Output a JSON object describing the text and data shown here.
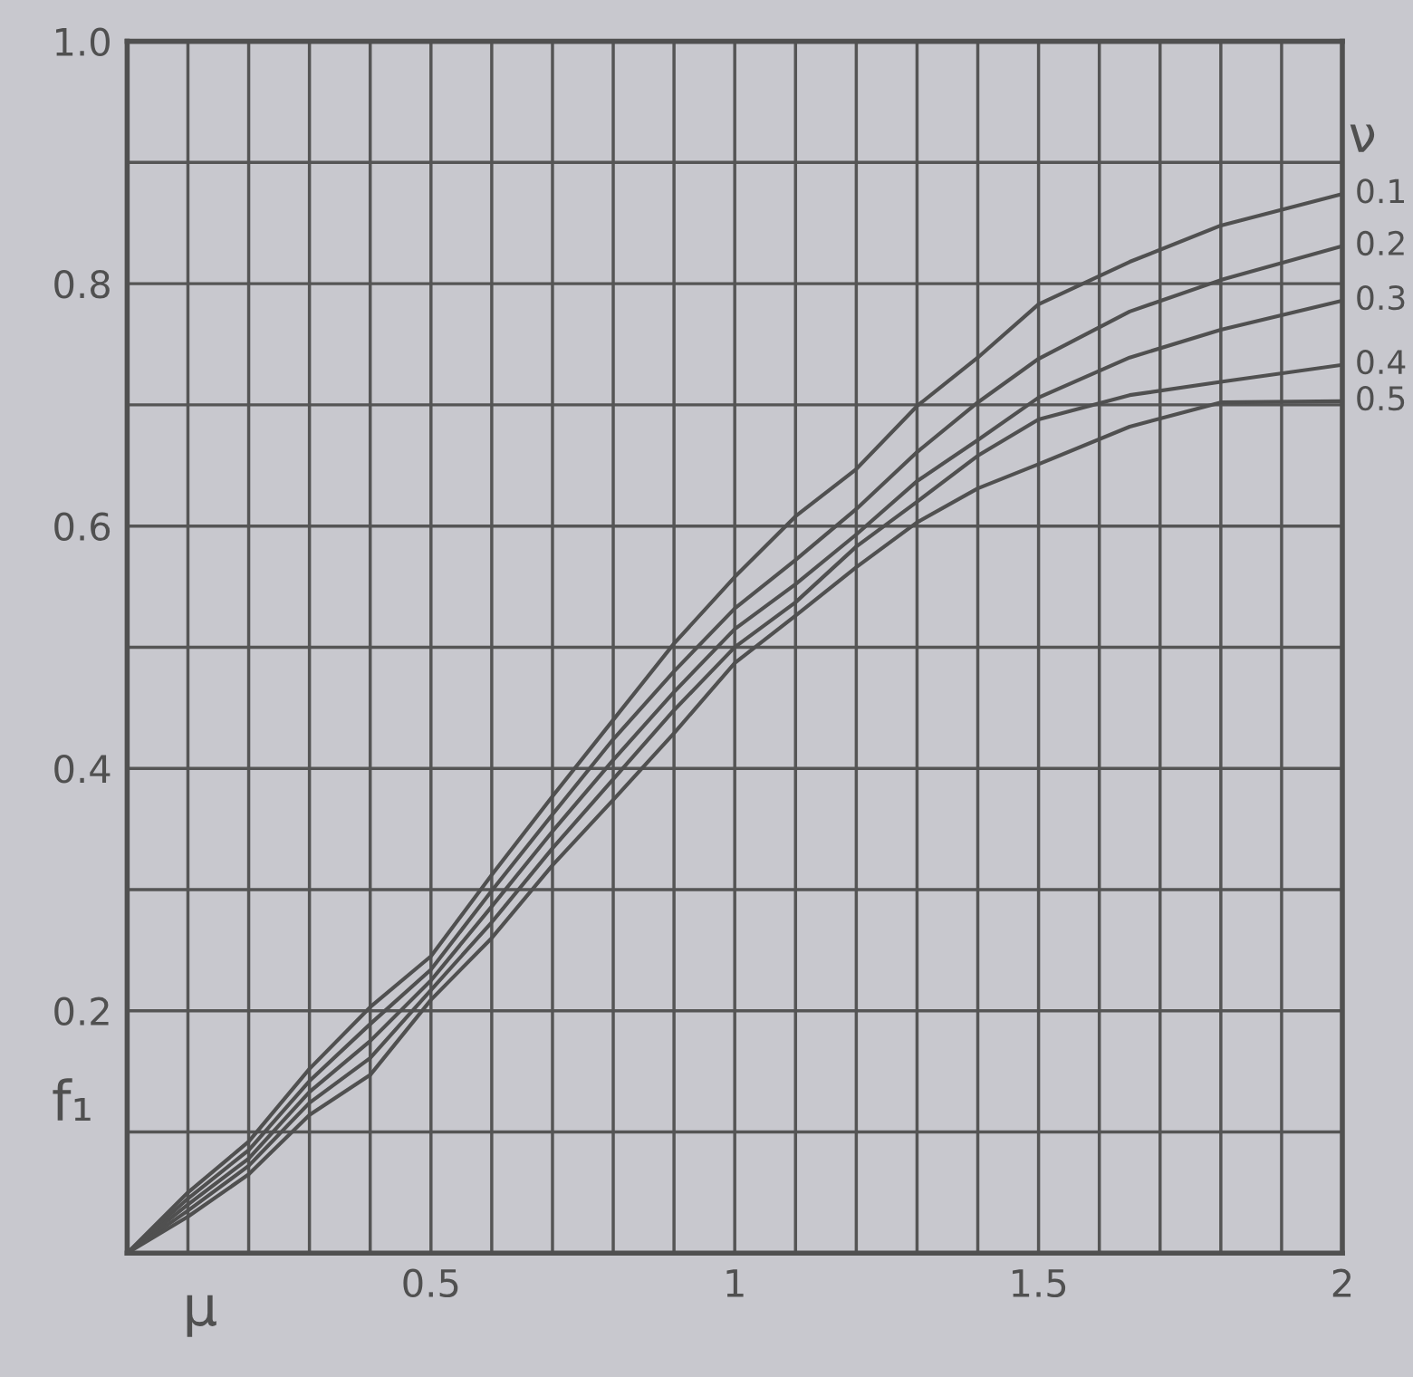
{
  "chart_data": {
    "type": "line",
    "xlabel": "μ",
    "ylabel": "f₁",
    "legend_title": "ν",
    "x": [
      0,
      0.1,
      0.2,
      0.3,
      0.4,
      0.5,
      0.6,
      0.7,
      0.8,
      0.9,
      1.0,
      1.1,
      1.2,
      1.3,
      1.4,
      1.5,
      1.65,
      1.8,
      2.0
    ],
    "series": [
      {
        "name": "0.1",
        "color": "#505050",
        "values": [
          0,
          0.05,
          0.092,
          0.152,
          0.203,
          0.245,
          0.312,
          0.377,
          0.44,
          0.503,
          0.558,
          0.608,
          0.647,
          0.699,
          0.739,
          0.783,
          0.818,
          0.848,
          0.874
        ]
      },
      {
        "name": "0.2",
        "color": "#505050",
        "values": [
          0,
          0.045,
          0.085,
          0.142,
          0.189,
          0.234,
          0.299,
          0.362,
          0.424,
          0.48,
          0.532,
          0.572,
          0.614,
          0.661,
          0.702,
          0.738,
          0.777,
          0.803,
          0.831
        ]
      },
      {
        "name": "0.3",
        "color": "#505050",
        "values": [
          0,
          0.04,
          0.078,
          0.133,
          0.175,
          0.225,
          0.286,
          0.348,
          0.407,
          0.463,
          0.515,
          0.552,
          0.593,
          0.637,
          0.671,
          0.706,
          0.739,
          0.762,
          0.786
        ]
      },
      {
        "name": "0.4",
        "color": "#505050",
        "values": [
          0,
          0.035,
          0.072,
          0.124,
          0.161,
          0.217,
          0.273,
          0.334,
          0.391,
          0.448,
          0.5,
          0.537,
          0.583,
          0.62,
          0.658,
          0.688,
          0.708,
          0.719,
          0.733
        ]
      },
      {
        "name": "0.5",
        "color": "#505050",
        "values": [
          0,
          0.03,
          0.065,
          0.114,
          0.147,
          0.209,
          0.26,
          0.32,
          0.374,
          0.429,
          0.487,
          0.526,
          0.566,
          0.603,
          0.631,
          0.651,
          0.682,
          0.702,
          0.703
        ]
      }
    ],
    "xlim": [
      0,
      2
    ],
    "ylim": [
      0,
      1.0
    ],
    "xticks": [
      {
        "value": 0.1,
        "label": null
      },
      {
        "value": 0.2,
        "label": null
      },
      {
        "value": 0.3,
        "label": null
      },
      {
        "value": 0.4,
        "label": null
      },
      0.5,
      {
        "value": 0.6,
        "label": null
      },
      {
        "value": 0.7,
        "label": null
      },
      {
        "value": 0.8,
        "label": null
      },
      {
        "value": 0.9,
        "label": null
      },
      {
        "value": 1,
        "label": "1"
      },
      {
        "value": 1.1,
        "label": null
      },
      {
        "value": 1.2,
        "label": null
      },
      {
        "value": 1.3,
        "label": null
      },
      {
        "value": 1.4,
        "label": null
      },
      1.5,
      {
        "value": 1.6,
        "label": null
      },
      {
        "value": 1.7,
        "label": null
      },
      {
        "value": 1.8,
        "label": null
      },
      {
        "value": 1.9,
        "label": null
      },
      {
        "value": 2,
        "label": "2"
      }
    ],
    "yticks": [
      {
        "value": 0.1,
        "label": null
      },
      0.2,
      {
        "value": 0.3,
        "label": null
      },
      0.4,
      {
        "value": 0.5,
        "label": null
      },
      0.6,
      {
        "value": 0.7,
        "label": null
      },
      0.8,
      {
        "value": 0.9,
        "label": null
      },
      {
        "value": 1.0,
        "label": "1.0"
      }
    ],
    "grid": true,
    "legend": false,
    "line_style": "solid",
    "marker": "none"
  }
}
